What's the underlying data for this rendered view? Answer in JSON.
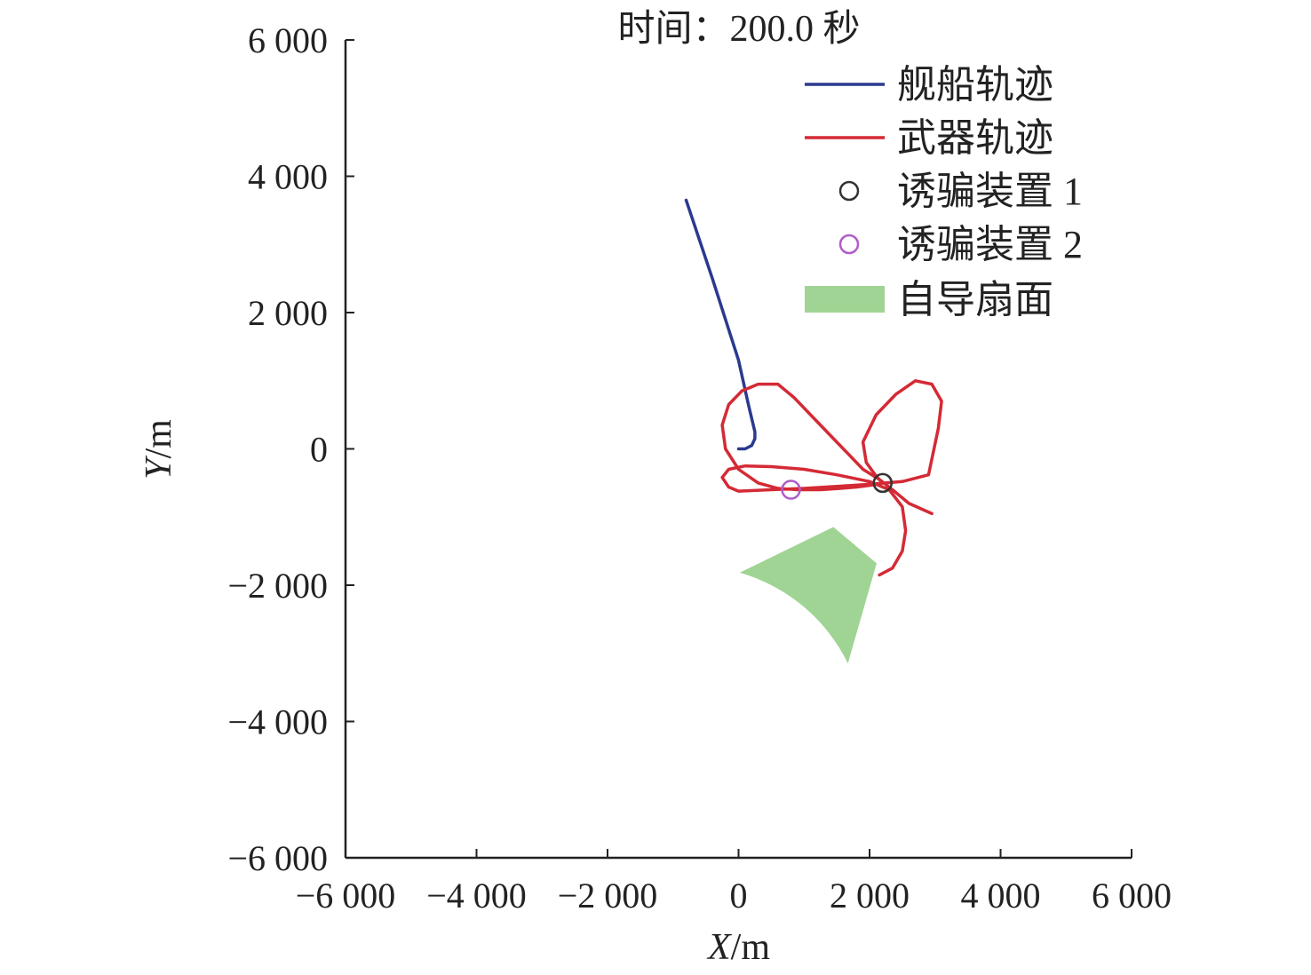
{
  "chart_data": {
    "type": "line",
    "title": "时间：200.0 秒",
    "xlabel": {
      "var": "X",
      "unit": "/m"
    },
    "ylabel": {
      "var": "Y",
      "unit": "/m"
    },
    "xlim": [
      -6000,
      6000
    ],
    "ylim": [
      -6000,
      6000
    ],
    "xticks": [
      -6000,
      -4000,
      -2000,
      0,
      2000,
      4000,
      6000
    ],
    "yticks": [
      -6000,
      -4000,
      -2000,
      0,
      2000,
      4000,
      6000
    ],
    "xtick_labels": [
      "−6 000",
      "−4 000",
      "−2 000",
      "0",
      "2 000",
      "4 000",
      "6 000"
    ],
    "ytick_labels": [
      "−6 000",
      "−4 000",
      "−2 000",
      "0",
      "2 000",
      "4 000",
      "6 000"
    ],
    "grid": false,
    "legend_position": "top-right",
    "series": [
      {
        "name": "舰船轨迹",
        "kind": "line",
        "color": "#2b3a8f",
        "x": [
          -800,
          -400,
          0,
          150,
          250,
          250,
          200,
          100,
          0
        ],
        "y": [
          3650,
          2500,
          1300,
          650,
          250,
          150,
          50,
          0,
          0
        ]
      },
      {
        "name": "武器轨迹",
        "kind": "line",
        "color": "#d42a35",
        "x": [
          2950,
          2600,
          2350,
          2150,
          1900,
          1700,
          1450,
          1150,
          850,
          600,
          300,
          50,
          -150,
          -250,
          -200,
          0,
          300,
          600,
          900,
          1250,
          1550,
          1800,
          2050,
          2200,
          2100,
          1950,
          1900,
          2100,
          2400,
          2700,
          2950,
          3100,
          3050,
          2900,
          2500,
          2000,
          1500,
          1000,
          500,
          0,
          -150,
          -250,
          -150,
          100,
          500,
          1000,
          1500,
          2000,
          2300,
          2500,
          2550,
          2500,
          2350,
          2150
        ],
        "y": [
          -950,
          -800,
          -600,
          -450,
          -300,
          -100,
          150,
          450,
          750,
          950,
          950,
          850,
          650,
          350,
          0,
          -300,
          -500,
          -580,
          -600,
          -600,
          -580,
          -560,
          -530,
          -500,
          -400,
          -200,
          100,
          500,
          800,
          1000,
          950,
          700,
          300,
          -380,
          -480,
          -520,
          -550,
          -580,
          -600,
          -620,
          -560,
          -420,
          -300,
          -250,
          -260,
          -300,
          -380,
          -480,
          -600,
          -850,
          -1200,
          -1500,
          -1750,
          -1850
        ]
      },
      {
        "name": "诱骗装置 1",
        "kind": "scatter",
        "color": "#333333",
        "x": [
          2200
        ],
        "y": [
          -500
        ]
      },
      {
        "name": "诱骗装置 2",
        "kind": "scatter",
        "color": "#b05cc9",
        "x": [
          800
        ],
        "y": [
          -600
        ]
      },
      {
        "name": "自导扇面",
        "kind": "sector",
        "color": "#a0d494",
        "apex": [
          2400,
          -700
        ],
        "radius": 2650,
        "angle_start_deg": 206,
        "angle_end_deg": 254
      }
    ]
  }
}
